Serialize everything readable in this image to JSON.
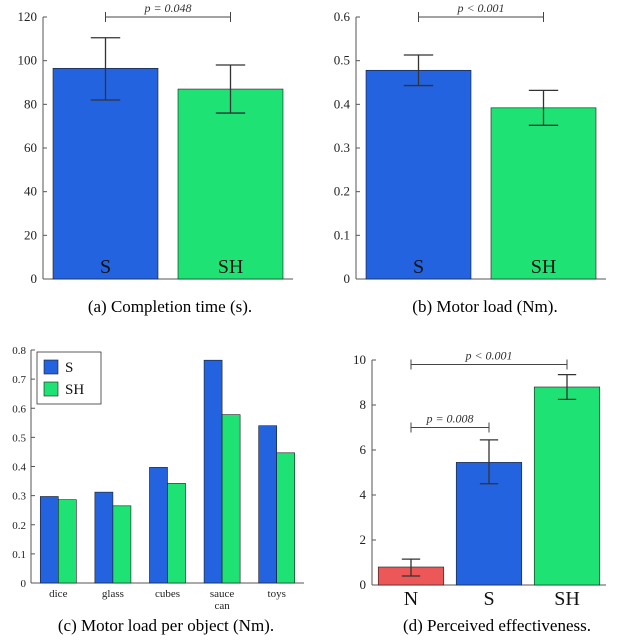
{
  "colors": {
    "S": "#2463e0",
    "SH": "#1fe274",
    "N": "#ec5858",
    "errorbar": "#333333",
    "axis": "#555555"
  },
  "chart_data": [
    {
      "type": "bar",
      "caption": "(a) Completion time (s).",
      "categories": [
        "S",
        "SH"
      ],
      "values": [
        96.5,
        87
      ],
      "errors": [
        [
          82,
          110.5
        ],
        [
          76,
          98
        ]
      ],
      "ylim": [
        0,
        120
      ],
      "yticks": [
        0,
        20,
        40,
        60,
        80,
        100,
        120
      ],
      "ytick_labels": [
        "0",
        "20",
        "40",
        "60",
        "80",
        "100",
        "120"
      ],
      "grid": false,
      "bar_labels_inside": true,
      "significance": [
        {
          "from": 0,
          "to": 1,
          "label": "p = 0.048"
        }
      ]
    },
    {
      "type": "bar",
      "caption": "(b) Motor load (Nm).",
      "categories": [
        "S",
        "SH"
      ],
      "values": [
        0.478,
        0.392
      ],
      "errors": [
        [
          0.443,
          0.513
        ],
        [
          0.352,
          0.432
        ]
      ],
      "ylim": [
        0,
        0.6
      ],
      "yticks": [
        0,
        0.1,
        0.2,
        0.3,
        0.4,
        0.5,
        0.6
      ],
      "ytick_labels": [
        "0",
        "0.1",
        "0.2",
        "0.3",
        "0.4",
        "0.5",
        "0.6"
      ],
      "grid": false,
      "bar_labels_inside": true,
      "significance": [
        {
          "from": 0,
          "to": 1,
          "label": "p < 0.001"
        }
      ]
    },
    {
      "type": "bar",
      "caption": "(c) Motor load per object (Nm).",
      "categories": [
        "dice",
        "glass",
        "cubes",
        "sauce can",
        "toys"
      ],
      "category_lines": [
        [
          "dice"
        ],
        [
          "glass"
        ],
        [
          "cubes"
        ],
        [
          "sauce",
          "can"
        ],
        [
          "toys"
        ]
      ],
      "series": [
        {
          "name": "S",
          "values": [
            0.297,
            0.312,
            0.397,
            0.765,
            0.54
          ]
        },
        {
          "name": "SH",
          "values": [
            0.286,
            0.265,
            0.342,
            0.578,
            0.447
          ]
        }
      ],
      "ylim": [
        0,
        0.8
      ],
      "yticks": [
        0,
        0.1,
        0.2,
        0.3,
        0.4,
        0.5,
        0.6,
        0.7,
        0.8
      ],
      "ytick_labels": [
        "0",
        "0.1",
        "0.2",
        "0.3",
        "0.4",
        "0.5",
        "0.6",
        "0.7",
        "0.8"
      ],
      "grid": false,
      "legend": "top-left"
    },
    {
      "type": "bar",
      "caption": "(d) Perceived effectiveness.",
      "categories": [
        "N",
        "S",
        "SH"
      ],
      "values": [
        0.8,
        5.45,
        8.8
      ],
      "errors": [
        [
          0.4,
          1.15
        ],
        [
          4.5,
          6.45
        ],
        [
          8.25,
          9.35
        ]
      ],
      "ylim": [
        0,
        10
      ],
      "yticks": [
        0,
        2,
        4,
        6,
        8,
        10
      ],
      "ytick_labels": [
        "0",
        "2",
        "4",
        "6",
        "8",
        "10"
      ],
      "grid": false,
      "bar_labels_inside": false,
      "significance": [
        {
          "from": 0,
          "to": 1,
          "label": "p = 0.008"
        },
        {
          "from": 0,
          "to": 2,
          "label": "p < 0.001"
        }
      ]
    }
  ]
}
